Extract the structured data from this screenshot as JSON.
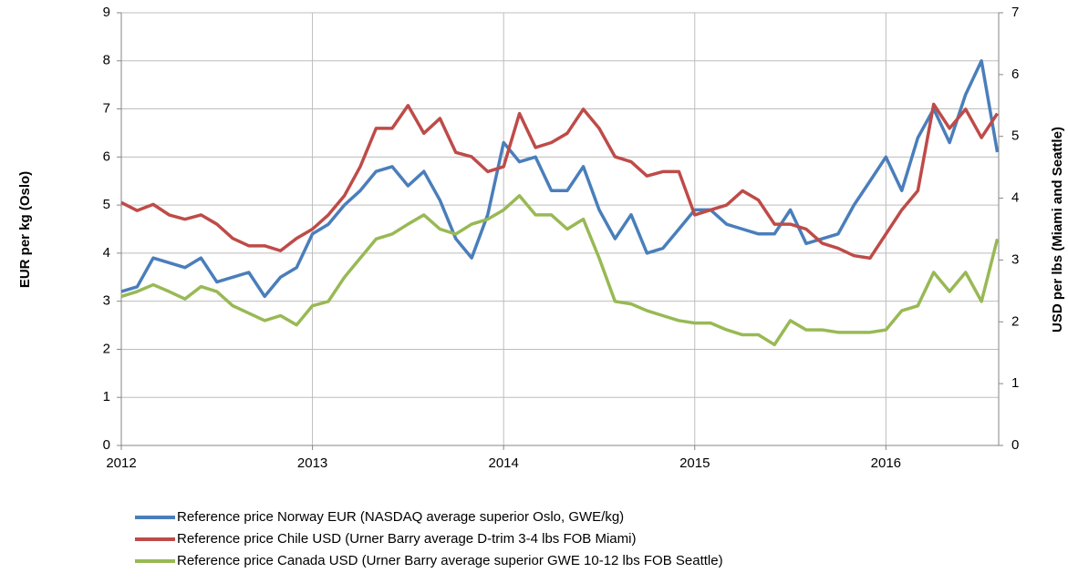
{
  "chart_data": {
    "type": "line",
    "y_label": "EUR per kg (Oslo)",
    "y2_label": "USD per lbs (Miami and Seattle)",
    "xlim": [
      2012,
      2016.59
    ],
    "xticks": [
      2012,
      2013,
      2014,
      2015,
      2016
    ],
    "ylim": [
      0,
      9
    ],
    "yticks": [
      0,
      1,
      2,
      3,
      4,
      5,
      6,
      7,
      8,
      9
    ],
    "y2lim": [
      0,
      7
    ],
    "y2ticks": [
      0,
      1,
      2,
      3,
      4,
      5,
      6,
      7
    ],
    "grid": true,
    "legend": "bottom",
    "x": [
      2012,
      2012.083,
      2012.167,
      2012.25,
      2012.333,
      2012.417,
      2012.5,
      2012.583,
      2012.667,
      2012.75,
      2012.833,
      2012.917,
      2013,
      2013.083,
      2013.167,
      2013.25,
      2013.333,
      2013.417,
      2013.5,
      2013.583,
      2013.667,
      2013.75,
      2013.833,
      2013.917,
      2014,
      2014.083,
      2014.167,
      2014.25,
      2014.333,
      2014.417,
      2014.5,
      2014.583,
      2014.667,
      2014.75,
      2014.833,
      2014.917,
      2015,
      2015.083,
      2015.167,
      2015.25,
      2015.333,
      2015.417,
      2015.5,
      2015.583,
      2015.667,
      2015.75,
      2015.833,
      2015.917,
      2016,
      2016.083,
      2016.167,
      2016.25,
      2016.333,
      2016.417,
      2016.5,
      2016.583
    ],
    "series": [
      {
        "name": "Reference price Norway EUR (NASDAQ average superior Oslo, GWE/kg)",
        "color": "#4a7ebb",
        "values": [
          3.2,
          3.3,
          3.9,
          3.8,
          3.7,
          3.9,
          3.4,
          3.5,
          3.6,
          3.1,
          3.5,
          3.7,
          4.4,
          4.6,
          5.0,
          5.3,
          5.7,
          5.8,
          5.4,
          5.7,
          5.1,
          4.3,
          3.9,
          4.8,
          6.3,
          5.9,
          6.0,
          5.3,
          5.3,
          5.8,
          4.9,
          4.3,
          4.8,
          4.0,
          4.1,
          4.5,
          4.9,
          4.9,
          4.6,
          4.5,
          4.4,
          4.4,
          4.9,
          4.2,
          4.3,
          4.4,
          5.0,
          5.5,
          6.0,
          5.3,
          6.4,
          7.0,
          6.3,
          7.3,
          8.0,
          6.1
        ]
      },
      {
        "name": "Reference price Chile USD (Urner Barry average D-trim 3-4 lbs FOB Miami)",
        "color": "#be4b48",
        "axis": "y2",
        "values": [
          3.93,
          3.8,
          3.9,
          3.73,
          3.66,
          3.73,
          3.58,
          3.35,
          3.23,
          3.23,
          3.15,
          3.35,
          3.5,
          3.73,
          4.04,
          4.51,
          5.13,
          5.13,
          5.5,
          5.05,
          5.29,
          4.74,
          4.67,
          4.43,
          4.51,
          5.37,
          4.82,
          4.9,
          5.05,
          5.44,
          5.13,
          4.67,
          4.59,
          4.36,
          4.43,
          4.43,
          3.73,
          3.81,
          3.89,
          4.12,
          3.97,
          3.58,
          3.58,
          3.5,
          3.27,
          3.19,
          3.07,
          3.03,
          3.42,
          3.81,
          4.12,
          5.52,
          5.13,
          5.44,
          4.98,
          5.37
        ]
      },
      {
        "name": "Reference price Canada USD (Urner Barry average superior GWE 10-12 lbs FOB Seattle)",
        "color": "#98b954",
        "axis": "y2",
        "values": [
          2.41,
          2.49,
          2.6,
          2.49,
          2.37,
          2.57,
          2.49,
          2.26,
          2.14,
          2.02,
          2.1,
          1.95,
          2.26,
          2.33,
          2.72,
          3.03,
          3.34,
          3.42,
          3.58,
          3.73,
          3.5,
          3.42,
          3.58,
          3.66,
          3.81,
          4.04,
          3.73,
          3.73,
          3.5,
          3.66,
          3.03,
          2.33,
          2.29,
          2.18,
          2.1,
          2.02,
          1.98,
          1.98,
          1.87,
          1.79,
          1.79,
          1.63,
          2.02,
          1.87,
          1.87,
          1.83,
          1.83,
          1.83,
          1.87,
          2.18,
          2.26,
          2.8,
          2.49,
          2.8,
          2.33,
          3.34
        ]
      }
    ]
  }
}
